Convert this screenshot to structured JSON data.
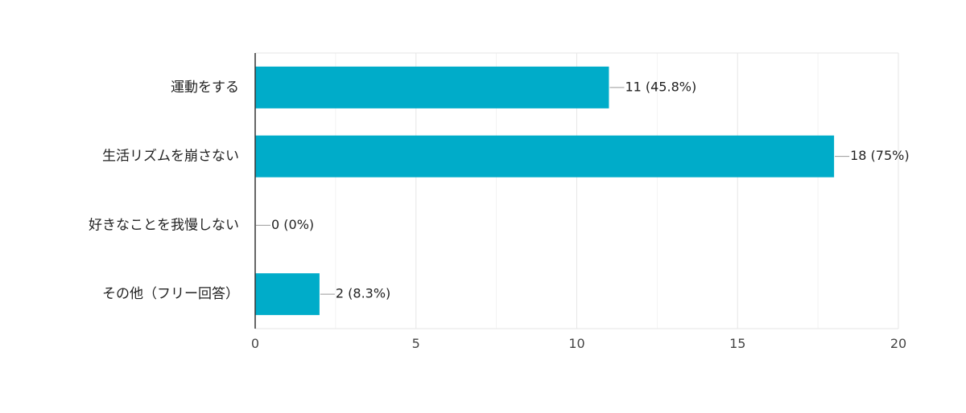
{
  "chart_data": {
    "type": "bar",
    "orientation": "horizontal",
    "categories": [
      "運動をする",
      "生活リズムを崩さない",
      "好きなことを我慢しない",
      "その他（フリー回答）"
    ],
    "values": [
      11,
      18,
      0,
      2
    ],
    "value_labels": [
      "11 (45.8%)",
      "18 (75%)",
      "0 (0%)",
      "2 (8.3%)"
    ],
    "xlim": [
      0,
      20
    ],
    "x_ticks": [
      0,
      5,
      10,
      15,
      20
    ],
    "grid": true,
    "legend": "none",
    "title": "",
    "xlabel": "",
    "ylabel": ""
  },
  "colors": {
    "bar": "#00acc9",
    "grid": "#e6e6e6",
    "axis": "#333333",
    "text": "#222222",
    "tick_text": "#444444",
    "leader_line": "#999999"
  }
}
